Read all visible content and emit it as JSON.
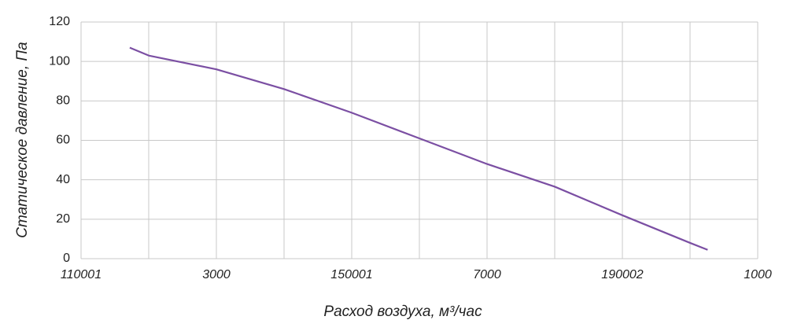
{
  "chart_data": {
    "type": "line",
    "x": [
      0.72,
      1,
      2,
      3,
      4,
      5,
      6,
      7,
      8,
      9,
      9.26
    ],
    "series": [
      {
        "color": "#7b4fa3",
        "values": [
          107,
          103,
          96,
          86,
          74,
          61,
          48,
          36.5,
          22,
          8,
          4.5
        ]
      }
    ],
    "xlim": [
      0,
      10
    ],
    "xticks": [
      {
        "value": 0,
        "label": "110001"
      },
      {
        "value": 2,
        "label": "3000"
      },
      {
        "value": 4,
        "label": "150001"
      },
      {
        "value": 6,
        "label": "7000"
      },
      {
        "value": 8,
        "label": "190002"
      },
      {
        "value": 10,
        "label": "1000"
      }
    ],
    "xminorticks": [
      1,
      3,
      5,
      7,
      9
    ],
    "ylim": [
      0,
      120
    ],
    "yticks": [
      0,
      20,
      40,
      60,
      80,
      100,
      120
    ],
    "xlabel": "Расход воздуха, м³/час",
    "ylabel": "Статическое давление, Па",
    "grid": true
  }
}
